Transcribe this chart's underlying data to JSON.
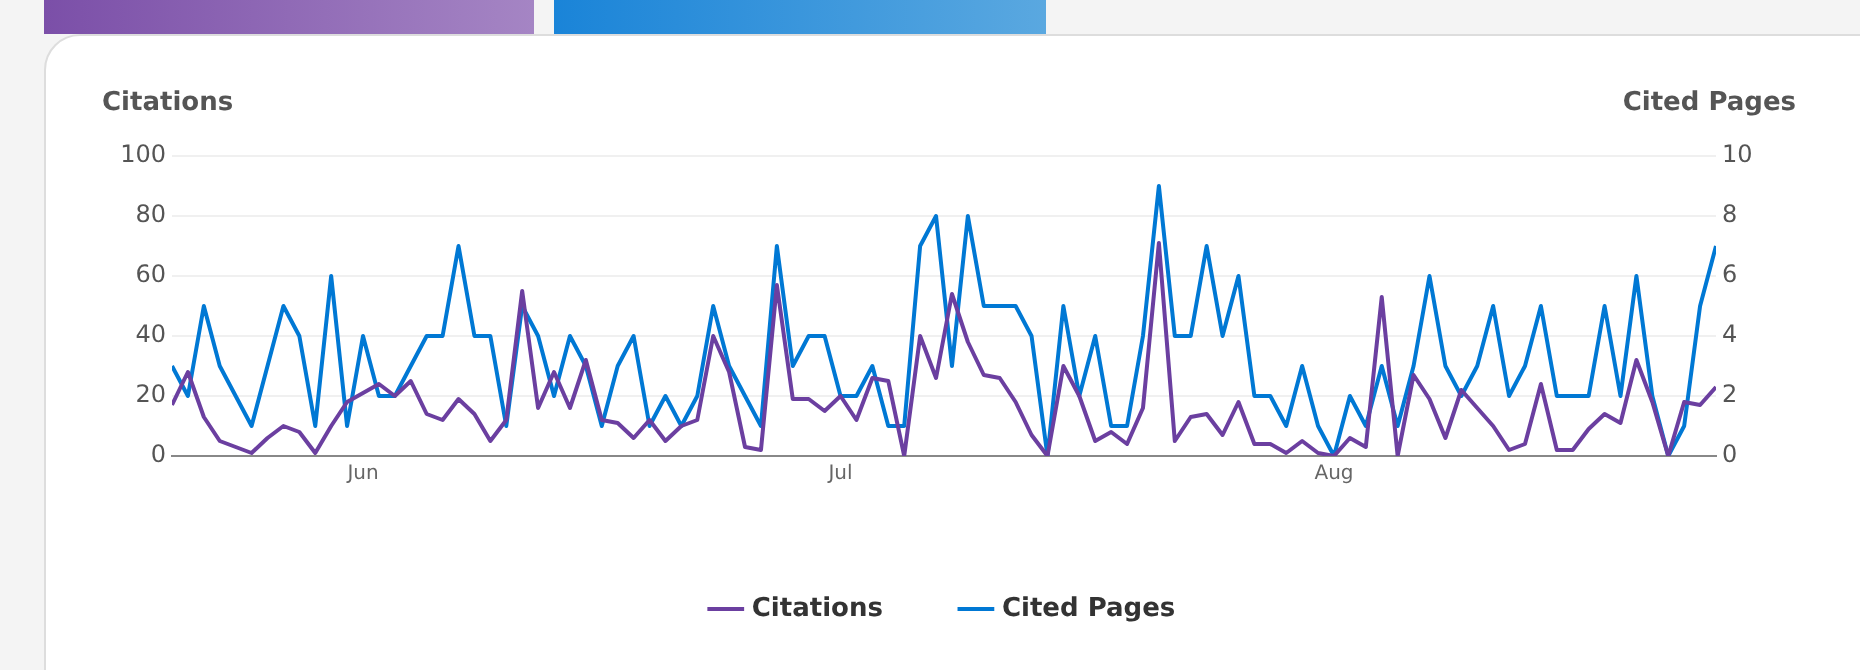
{
  "chart_data": {
    "type": "line",
    "ylabel": "Citations",
    "y2label": "Cited Pages",
    "x": [
      "--05-20",
      "--05-21",
      "--05-22",
      "--05-23",
      "--05-24",
      "--05-25",
      "--05-26",
      "--05-27",
      "--05-28",
      "--05-29",
      "--05-30",
      "--05-31",
      "--06-01",
      "--06-02",
      "--06-03",
      "--06-04",
      "--06-05",
      "--06-06",
      "--06-07",
      "--06-08",
      "--06-09",
      "--06-10",
      "--06-11",
      "--06-12",
      "--06-13",
      "--06-14",
      "--06-15",
      "--06-16",
      "--06-17",
      "--06-18",
      "--06-19",
      "--06-20",
      "--06-21",
      "--06-22",
      "--06-23",
      "--06-24",
      "--06-25",
      "--06-26",
      "--06-27",
      "--06-28",
      "--06-29",
      "--06-30",
      "--07-01",
      "--07-02",
      "--07-03",
      "--07-04",
      "--07-05",
      "--07-06",
      "--07-07",
      "--07-08",
      "--07-09",
      "--07-10",
      "--07-11",
      "--07-12",
      "--07-13",
      "--07-14",
      "--07-15",
      "--07-16",
      "--07-17",
      "--07-18",
      "--07-19",
      "--07-20",
      "--07-21",
      "--07-22",
      "--07-23",
      "--07-24",
      "--07-25",
      "--07-26",
      "--07-27",
      "--07-28",
      "--07-29",
      "--07-30",
      "--07-31",
      "--08-01",
      "--08-02",
      "--08-03",
      "--08-04",
      "--08-05",
      "--08-06",
      "--08-07",
      "--08-08",
      "--08-09",
      "--08-10",
      "--08-11",
      "--08-12",
      "--08-13",
      "--08-14",
      "--08-15",
      "--08-16",
      "--08-17",
      "--08-18",
      "--08-19",
      "--08-20",
      "--08-21",
      "--08-22",
      "--08-23",
      "--08-24",
      "--08-25"
    ],
    "series": [
      {
        "name": "Citations",
        "color": "#6b3fa0",
        "values": [
          17,
          28,
          13,
          5,
          3,
          1,
          6,
          10,
          8,
          1,
          10,
          18,
          21,
          24,
          20,
          25,
          14,
          12,
          19,
          14,
          5,
          12,
          55,
          16,
          28,
          16,
          32,
          12,
          11,
          6,
          12,
          5,
          10,
          12,
          40,
          28,
          3,
          2,
          57,
          19,
          19,
          15,
          20,
          12,
          26,
          25,
          0,
          40,
          26,
          54,
          38,
          27,
          26,
          18,
          7,
          0,
          30,
          20,
          5,
          8,
          4,
          16,
          71,
          5,
          13,
          14,
          7,
          18,
          4,
          4,
          1,
          5,
          1,
          0,
          6,
          3,
          53,
          0,
          27,
          19,
          6,
          22,
          16,
          10,
          2,
          4,
          24,
          2,
          2,
          9,
          14,
          11,
          32,
          18,
          0,
          18,
          17,
          23
        ]
      },
      {
        "name": "Cited Pages",
        "color": "#0078d4",
        "axis": "y2",
        "values": [
          3,
          2,
          5,
          3,
          2,
          1,
          3,
          5,
          4,
          1,
          6,
          1,
          4,
          2,
          2,
          3,
          4,
          4,
          7,
          4,
          4,
          1,
          5,
          4,
          2,
          4,
          3,
          1,
          3,
          4,
          1,
          2,
          1,
          2,
          5,
          3,
          2,
          1,
          7,
          3,
          4,
          4,
          2,
          2,
          3,
          1,
          1,
          7,
          8,
          3,
          8,
          5,
          5,
          5,
          4,
          0,
          5,
          2,
          4,
          1,
          1,
          4,
          9,
          4,
          4,
          7,
          4,
          6,
          2,
          2,
          1,
          3,
          1,
          0,
          2,
          1,
          3,
          1,
          3,
          6,
          3,
          2,
          3,
          5,
          2,
          3,
          5,
          2,
          2,
          2,
          5,
          2,
          6,
          2,
          0,
          1,
          5,
          7
        ]
      }
    ],
    "xlim": [
      "--05-20",
      "--08-25"
    ],
    "xticks": [
      {
        "value": "--06-01",
        "label": "Jun"
      },
      {
        "value": "--07-01",
        "label": "Jul"
      },
      {
        "value": "--08-01",
        "label": "Aug"
      }
    ],
    "ylim": [
      0,
      100
    ],
    "yticks": [
      0,
      20,
      40,
      60,
      80,
      100
    ],
    "y2lim": [
      0,
      10
    ],
    "y2ticks": [
      0,
      2,
      4,
      6,
      8,
      10
    ],
    "grid": "y",
    "legend": "bottom"
  }
}
